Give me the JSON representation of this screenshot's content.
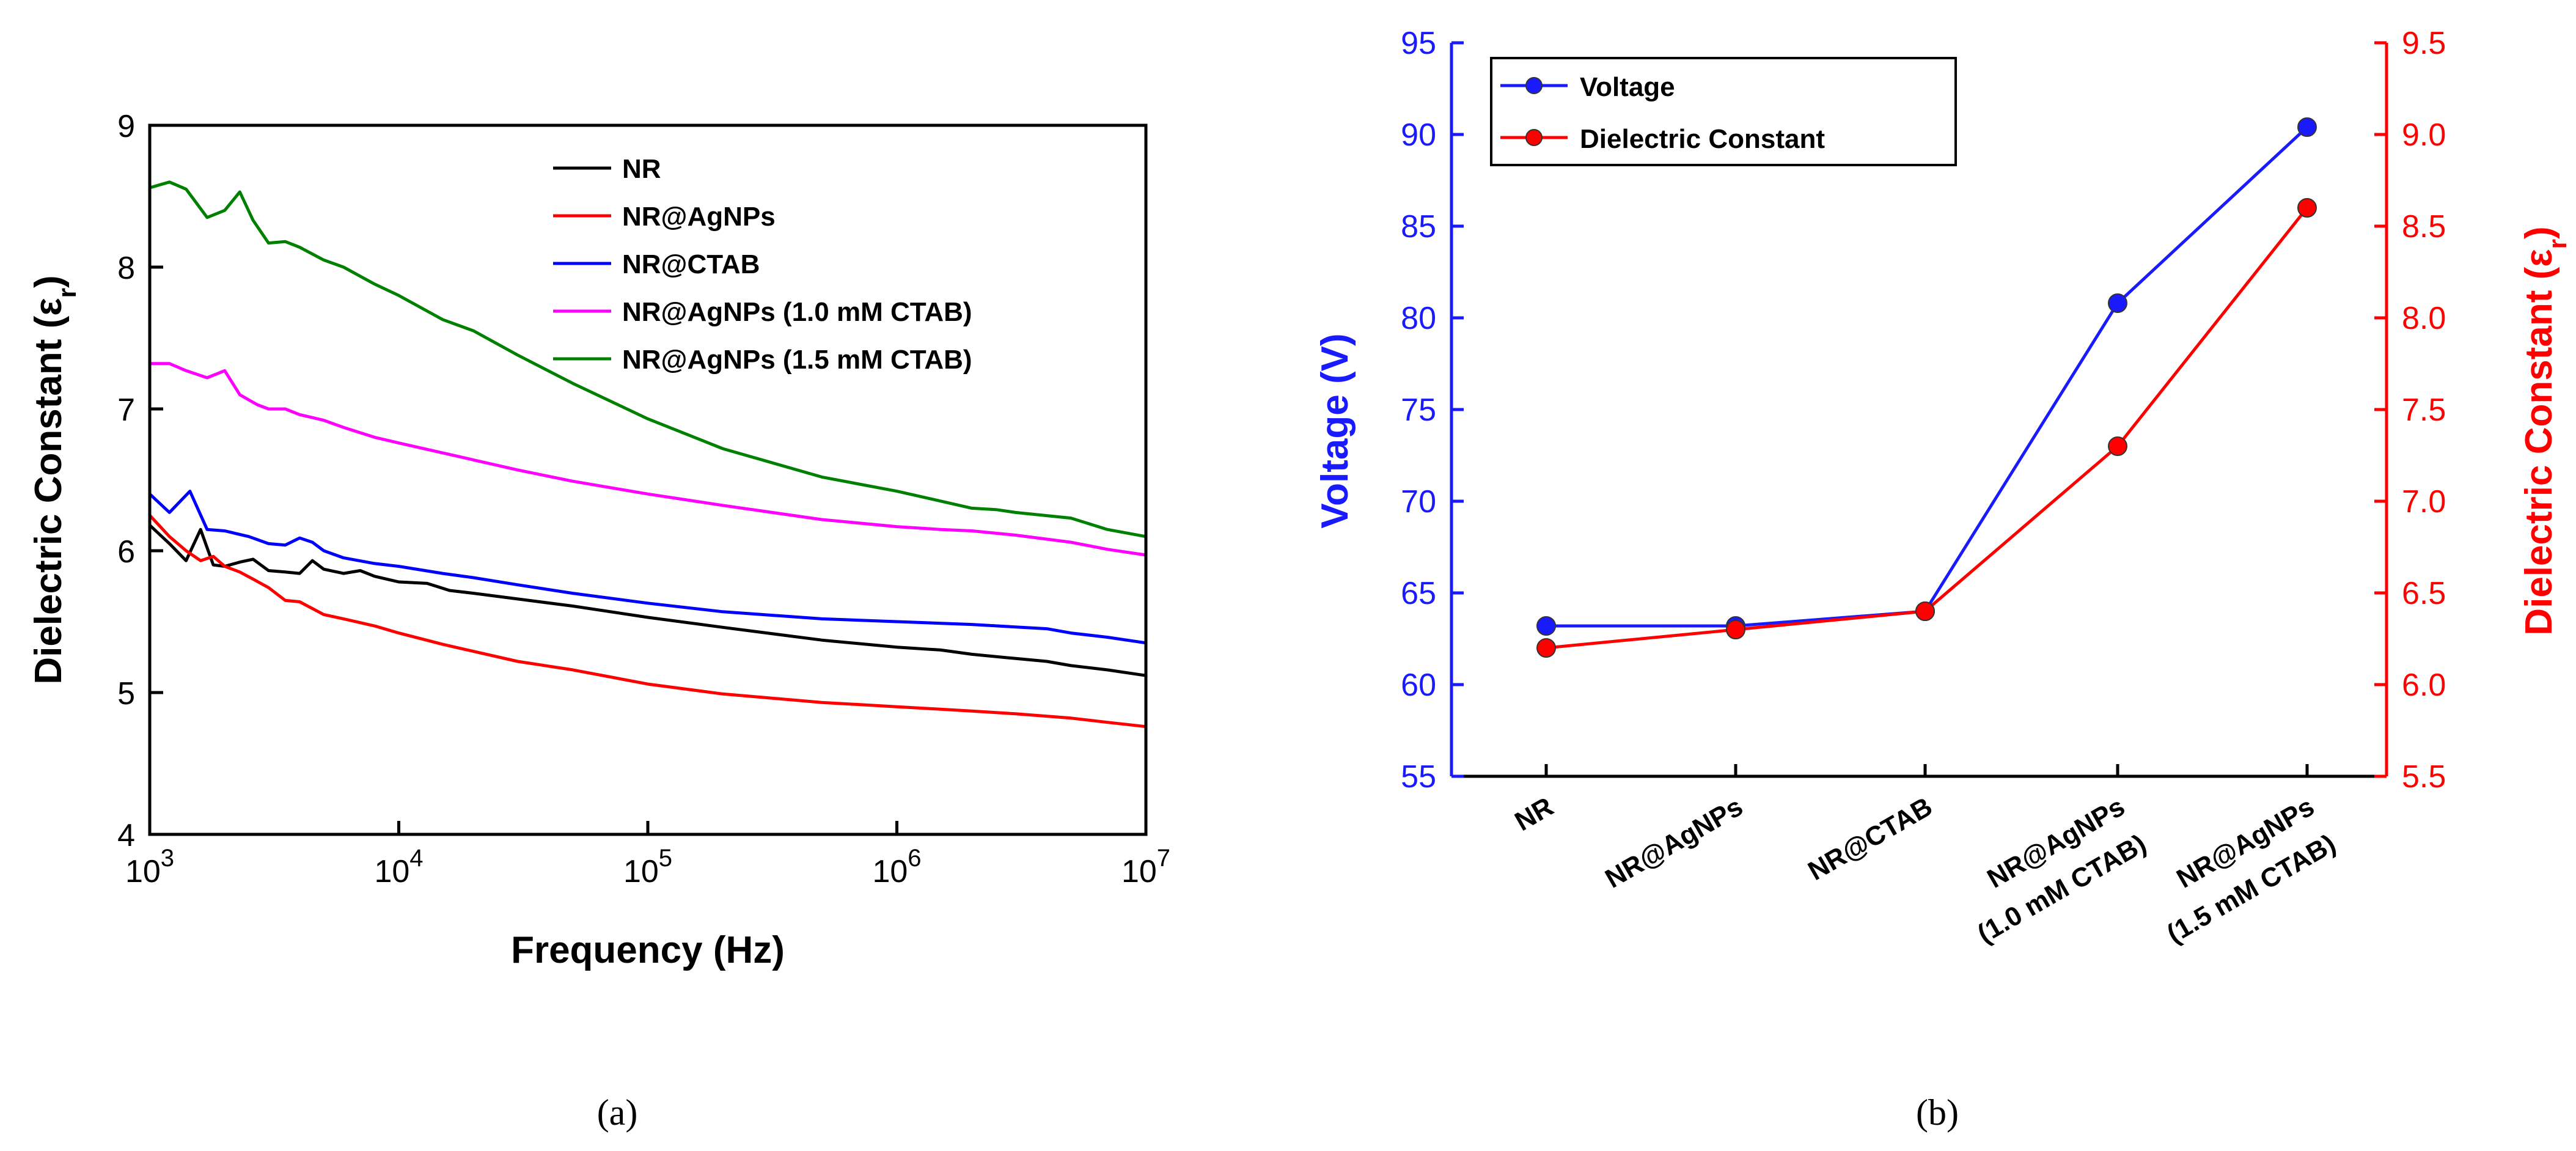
{
  "chart_data": [
    {
      "type": "line",
      "panel_label": "(a)",
      "xlabel": "Frequency (Hz)",
      "ylabel": "Dielectric Constant (ε",
      "ylabel_sub": "r",
      "ylabel_close": ")",
      "xscale": "log",
      "xlim": [
        1000,
        10000000
      ],
      "ylim": [
        4,
        9
      ],
      "xticks": [
        {
          "value": 1000,
          "base": "10",
          "exp": "3"
        },
        {
          "value": 10000,
          "base": "10",
          "exp": "4"
        },
        {
          "value": 100000,
          "base": "10",
          "exp": "5"
        },
        {
          "value": 1000000,
          "base": "10",
          "exp": "6"
        },
        {
          "value": 10000000,
          "base": "10",
          "exp": "7"
        }
      ],
      "yticks": [
        {
          "value": 4,
          "label": "4"
        },
        {
          "value": 5,
          "label": "5"
        },
        {
          "value": 6,
          "label": "6"
        },
        {
          "value": 7,
          "label": "7"
        },
        {
          "value": 8,
          "label": "8"
        },
        {
          "value": 9,
          "label": "9"
        }
      ],
      "legend": "top-right",
      "series": [
        {
          "name": "NR",
          "color": "#000000",
          "x": [
            1000,
            1200,
            1400,
            1600,
            1800,
            2000,
            2300,
            2600,
            3000,
            3500,
            4000,
            4500,
            5000,
            6000,
            7000,
            8000,
            10000,
            13000,
            16000,
            20000,
            30000,
            50000,
            100000,
            200000,
            500000,
            1000000,
            1500000,
            2000000,
            3000000,
            4000000,
            5000000,
            7000000,
            10000000
          ],
          "y": [
            6.18,
            6.05,
            5.93,
            6.15,
            5.9,
            5.89,
            5.92,
            5.94,
            5.86,
            5.85,
            5.84,
            5.93,
            5.87,
            5.84,
            5.86,
            5.82,
            5.78,
            5.77,
            5.72,
            5.7,
            5.66,
            5.61,
            5.53,
            5.46,
            5.37,
            5.32,
            5.3,
            5.27,
            5.24,
            5.22,
            5.19,
            5.16,
            5.12
          ]
        },
        {
          "name": "NR@AgNPs",
          "color": "#ff0000",
          "x": [
            1000,
            1200,
            1400,
            1600,
            1800,
            2000,
            2300,
            2600,
            3000,
            3500,
            4000,
            5000,
            6000,
            8000,
            10000,
            15000,
            20000,
            30000,
            50000,
            100000,
            200000,
            500000,
            1000000,
            2000000,
            3000000,
            5000000,
            7000000,
            10000000
          ],
          "y": [
            6.25,
            6.1,
            6.0,
            5.93,
            5.96,
            5.89,
            5.85,
            5.8,
            5.74,
            5.65,
            5.64,
            5.55,
            5.52,
            5.47,
            5.42,
            5.34,
            5.29,
            5.22,
            5.16,
            5.06,
            4.99,
            4.93,
            4.9,
            4.87,
            4.85,
            4.82,
            4.79,
            4.76
          ]
        },
        {
          "name": "NR@CTAB",
          "color": "#0000ff",
          "x": [
            1000,
            1200,
            1450,
            1700,
            2000,
            2500,
            3000,
            3500,
            4000,
            4500,
            5000,
            6000,
            8000,
            10000,
            15000,
            20000,
            30000,
            50000,
            100000,
            200000,
            500000,
            1000000,
            2000000,
            4000000,
            5000000,
            7000000,
            10000000
          ],
          "y": [
            6.4,
            6.27,
            6.42,
            6.15,
            6.14,
            6.1,
            6.05,
            6.04,
            6.09,
            6.06,
            6.0,
            5.95,
            5.91,
            5.89,
            5.84,
            5.81,
            5.76,
            5.7,
            5.63,
            5.57,
            5.52,
            5.5,
            5.48,
            5.45,
            5.42,
            5.39,
            5.35
          ]
        },
        {
          "name": "NR@AgNPs (1.0 mM CTAB)",
          "color": "#ff00ff",
          "x": [
            1000,
            1200,
            1400,
            1700,
            2000,
            2300,
            2700,
            3000,
            3500,
            4000,
            5000,
            6000,
            8000,
            10000,
            15000,
            20000,
            30000,
            50000,
            100000,
            200000,
            500000,
            1000000,
            1500000,
            2000000,
            3000000,
            5000000,
            7000000,
            10000000
          ],
          "y": [
            7.32,
            7.32,
            7.27,
            7.22,
            7.27,
            7.1,
            7.03,
            7.0,
            7.0,
            6.96,
            6.92,
            6.87,
            6.8,
            6.76,
            6.69,
            6.64,
            6.57,
            6.49,
            6.4,
            6.32,
            6.22,
            6.17,
            6.15,
            6.14,
            6.11,
            6.06,
            6.01,
            5.97
          ]
        },
        {
          "name": "NR@AgNPs (1.5 mM CTAB)",
          "color": "#008000",
          "x": [
            1000,
            1200,
            1400,
            1700,
            2000,
            2300,
            2600,
            3000,
            3500,
            4000,
            5000,
            6000,
            8000,
            10000,
            15000,
            20000,
            30000,
            50000,
            100000,
            200000,
            500000,
            1000000,
            1500000,
            2000000,
            2500000,
            3000000,
            5000000,
            7000000,
            10000000
          ],
          "y": [
            8.56,
            8.6,
            8.55,
            8.35,
            8.4,
            8.53,
            8.33,
            8.17,
            8.18,
            8.14,
            8.05,
            8.0,
            7.88,
            7.8,
            7.63,
            7.55,
            7.38,
            7.18,
            6.93,
            6.72,
            6.52,
            6.42,
            6.35,
            6.3,
            6.29,
            6.27,
            6.23,
            6.15,
            6.1
          ]
        }
      ]
    },
    {
      "type": "line",
      "panel_label": "(b)",
      "categories": [
        "NR",
        "NR@AgNPs",
        "NR@CTAB",
        "NR@AgNPs\n(1.0 mM CTAB)",
        "NR@AgNPs\n(1.5 mM CTAB)"
      ],
      "ylabel": "Voltage (V)",
      "y2label": "Dielectric Constant (ε",
      "y2label_sub": "r",
      "y2label_close": ")",
      "ylim": [
        55,
        95
      ],
      "y2lim": [
        5.5,
        9.5
      ],
      "yticks": [
        "55",
        "60",
        "65",
        "70",
        "75",
        "80",
        "85",
        "90",
        "95"
      ],
      "y2ticks": [
        "5.5",
        "6.0",
        "6.5",
        "7.0",
        "7.5",
        "8.0",
        "8.5",
        "9.0",
        "9.5"
      ],
      "legend": "top-left",
      "left_color": "#1a1aff",
      "right_color": "#ff0000",
      "series": [
        {
          "name": "Voltage",
          "axis": "left",
          "color": "#1a1aff",
          "values": [
            63.2,
            63.2,
            64.0,
            80.8,
            90.4
          ]
        },
        {
          "name": "Dielectric Constant",
          "axis": "right",
          "color": "#ff0000",
          "values": [
            6.2,
            6.3,
            6.4,
            7.3,
            8.6
          ]
        }
      ]
    }
  ]
}
